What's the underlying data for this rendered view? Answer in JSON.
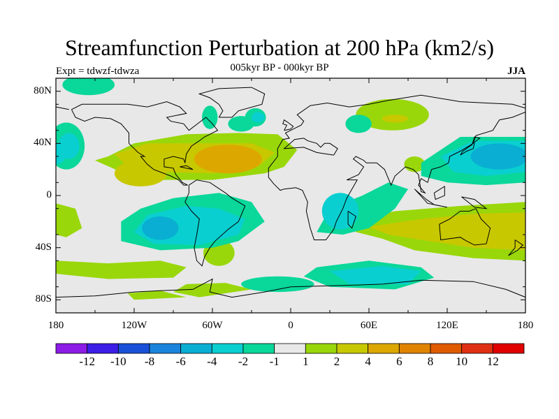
{
  "title": "Streamfunction Perturbation at 200 hPa (km2/s)",
  "subtitle_left": "Expt = tdwzf-tdwza",
  "subtitle_center": "005kyr BP - 000kyr BP",
  "subtitle_right": "JJA",
  "y_ticks": [
    "80N",
    "40N",
    "0",
    "40S",
    "80S"
  ],
  "x_ticks": [
    "180",
    "120W",
    "60W",
    "0",
    "60E",
    "120E",
    "180"
  ],
  "colorbar": {
    "labels": [
      "-12",
      "-10",
      "-8",
      "-6",
      "-4",
      "-2",
      "-1",
      "1",
      "2",
      "4",
      "6",
      "8",
      "10",
      "12"
    ],
    "colors": [
      "#8c1ce6",
      "#3c1ee6",
      "#1a50d8",
      "#1a84dc",
      "#0aaed2",
      "#0acfd0",
      "#0ad79a",
      "#e8e8e8",
      "#99d70a",
      "#c8c800",
      "#dca800",
      "#e08400",
      "#e05a00",
      "#e03014",
      "#e00000"
    ]
  },
  "chart_data": {
    "type": "filled-contour map",
    "projection": "cylindrical equidistant",
    "lon_range": [
      -180,
      180
    ],
    "lat_range": [
      -90,
      90
    ],
    "units": "km2/s",
    "levels": [
      -12,
      -10,
      -8,
      -6,
      -4,
      -2,
      -1,
      1,
      2,
      4,
      6,
      8,
      10,
      12
    ],
    "features": [
      {
        "lon": -60,
        "lat": 25,
        "level": 4,
        "desc": "positive max over tropical Atlantic / Caribbean"
      },
      {
        "lon": -165,
        "lat": 40,
        "level": -2,
        "desc": "weak negative over central North Pacific"
      },
      {
        "lon": -100,
        "lat": -25,
        "level": -4,
        "desc": "negative over SE Pacific"
      },
      {
        "lon": -35,
        "lat": 65,
        "level": -2,
        "desc": "negative near Greenland"
      },
      {
        "lon": 78,
        "lat": 62,
        "level": 2,
        "desc": "positive over Siberia"
      },
      {
        "lon": 155,
        "lat": 30,
        "level": -4,
        "desc": "negative over NW Pacific"
      },
      {
        "lon": 60,
        "lat": -60,
        "level": -4,
        "desc": "negative over Southern Ocean"
      },
      {
        "lon": 140,
        "lat": -20,
        "level": 2,
        "desc": "positive over Australia"
      },
      {
        "lon": -120,
        "lat": -55,
        "level": 1,
        "desc": "positive over South Pacific band"
      }
    ]
  }
}
